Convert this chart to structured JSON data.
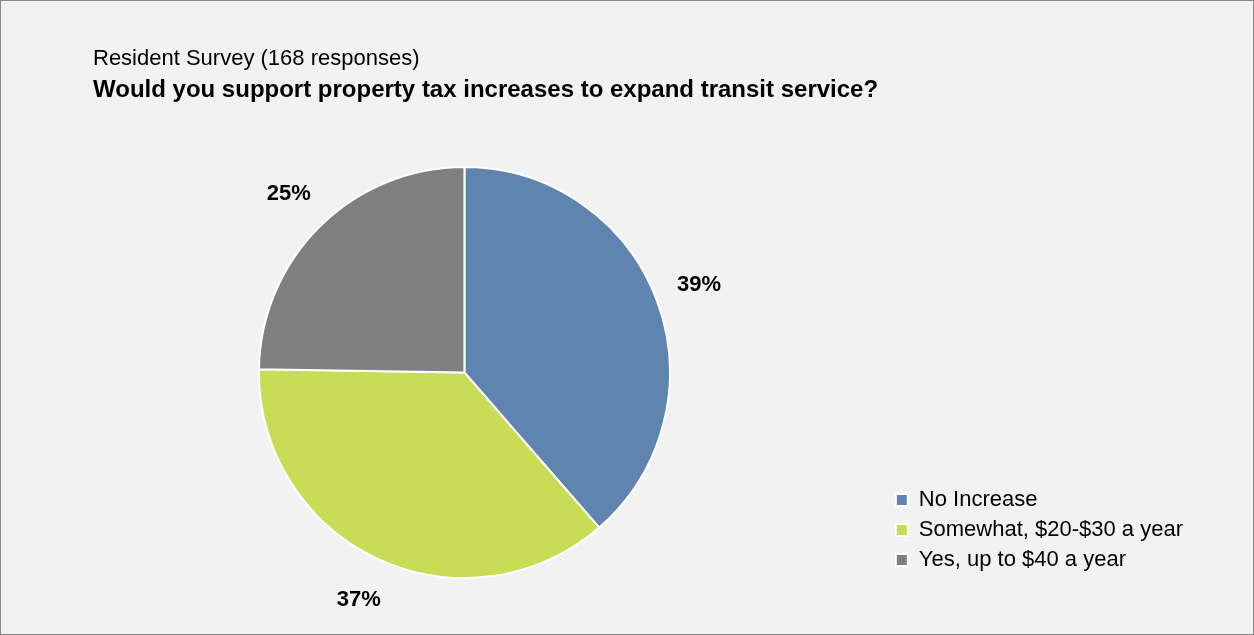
{
  "chart_data": {
    "type": "pie",
    "subtitle": "Resident Survey (168 responses)",
    "title": "Would you support property tax increases to expand transit service?",
    "categories": [
      "No Increase",
      "Somewhat, $20-$30 a year",
      "Yes, up to $40 a year"
    ],
    "values": [
      39,
      37,
      25
    ],
    "colors": [
      "#5f84b0",
      "#c8dc55",
      "#7f7f7f"
    ],
    "value_labels": [
      "39%",
      "37%",
      "25%"
    ],
    "legend": "right"
  }
}
